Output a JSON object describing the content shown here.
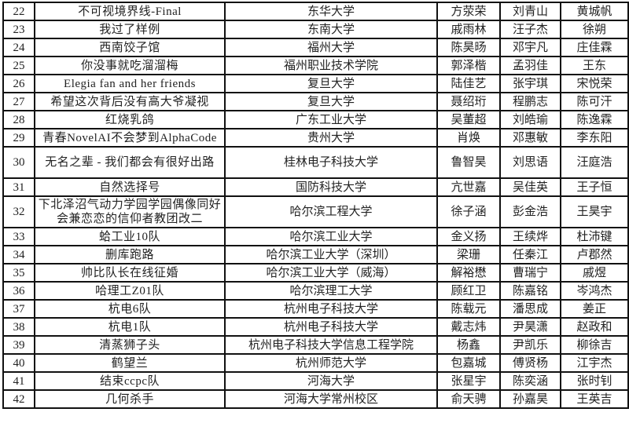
{
  "rows": [
    {
      "rank": "22",
      "team": "不可视境界线-Final",
      "school": "东华大学",
      "m1": "方荥荣",
      "m2": "刘青山",
      "m3": "黄城帆"
    },
    {
      "rank": "23",
      "team": "我过了样例",
      "school": "东南大学",
      "m1": "戚雨林",
      "m2": "汪子杰",
      "m3": "徐朔"
    },
    {
      "rank": "24",
      "team": "西南饺子馆",
      "school": "福州大学",
      "m1": "陈昊旸",
      "m2": "邓宇凡",
      "m3": "庄佳霖"
    },
    {
      "rank": "25",
      "team": "你没事就吃溜溜梅",
      "school": "福州职业技术学院",
      "m1": "郭泽楷",
      "m2": "孟羽佳",
      "m3": "王东"
    },
    {
      "rank": "26",
      "team": "Elegia fan and her friends",
      "school": "复旦大学",
      "m1": "陆佳艺",
      "m2": "张宇琪",
      "m3": "宋悦荣"
    },
    {
      "rank": "27",
      "team": "希望这次背后没有高大爷凝视",
      "school": "复旦大学",
      "m1": "聂绍珩",
      "m2": "程鹏志",
      "m3": "陈可汗"
    },
    {
      "rank": "28",
      "team": "红烧乳鸽",
      "school": "广东工业大学",
      "m1": "吴董超",
      "m2": "刘皓瑜",
      "m3": "陈逸霖"
    },
    {
      "rank": "29",
      "team": "青春NovelAI不会梦到AlphaCode",
      "school": "贵州大学",
      "m1": "肖焕",
      "m2": "邓惠敏",
      "m3": "李东阳"
    },
    {
      "rank": "30",
      "team": "无名之辈 - 我们都会有很好出路",
      "school": "桂林电子科技大学",
      "m1": "鲁智昊",
      "m2": "刘思语",
      "m3": "汪庭浩",
      "tall": true
    },
    {
      "rank": "31",
      "team": "自然选择号",
      "school": "国防科技大学",
      "m1": "亢世嘉",
      "m2": "吴佳英",
      "m3": "王子恒"
    },
    {
      "rank": "32",
      "team": "下北泽沼气动力学园学园偶像同好会兼恋恋的信仰者教团改二",
      "school": "哈尔滨工程大学",
      "m1": "徐子涵",
      "m2": "彭金浩",
      "m3": "王昊宇",
      "tall": true
    },
    {
      "rank": "33",
      "team": "蛤工业10队",
      "school": "哈尔滨工业大学",
      "m1": "金义扬",
      "m2": "王续烨",
      "m3": "杜沛键"
    },
    {
      "rank": "34",
      "team": "删库跑路",
      "school": "哈尔滨工业大学（深圳）",
      "m1": "梁珊",
      "m2": "任秦江",
      "m3": "卢郡然"
    },
    {
      "rank": "35",
      "team": "帅比队长在线征婚",
      "school": "哈尔滨工业大学（威海）",
      "m1": "解裕懋",
      "m2": "曹瑞宁",
      "m3": "戚煜"
    },
    {
      "rank": "36",
      "team": "哈理工Z01队",
      "school": "哈尔滨理工大学",
      "m1": "顾红卫",
      "m2": "陈嘉铭",
      "m3": "岑鸿杰"
    },
    {
      "rank": "37",
      "team": "杭电6队",
      "school": "杭州电子科技大学",
      "m1": "陈载元",
      "m2": "潘思成",
      "m3": "姜正"
    },
    {
      "rank": "38",
      "team": "杭电1队",
      "school": "杭州电子科技大学",
      "m1": "戴志炜",
      "m2": "尹昊潇",
      "m3": "赵政和"
    },
    {
      "rank": "39",
      "team": "清蒸狮子头",
      "school": "杭州电子科技大学信息工程学院",
      "m1": "杨鑫",
      "m2": "尹凯乐",
      "m3": "柳徐吉"
    },
    {
      "rank": "40",
      "team": "鹤望兰",
      "school": "杭州师范大学",
      "m1": "包嘉城",
      "m2": "傅贤杨",
      "m3": "江宇杰"
    },
    {
      "rank": "41",
      "team": "结束ccpc队",
      "school": "河海大学",
      "m1": "张星宇",
      "m2": "陈奕涵",
      "m3": "张时钊"
    },
    {
      "rank": "42",
      "team": "几何杀手",
      "school": "河海大学常州校区",
      "m1": "俞天骋",
      "m2": "孙嘉昊",
      "m3": "王英吉"
    }
  ]
}
